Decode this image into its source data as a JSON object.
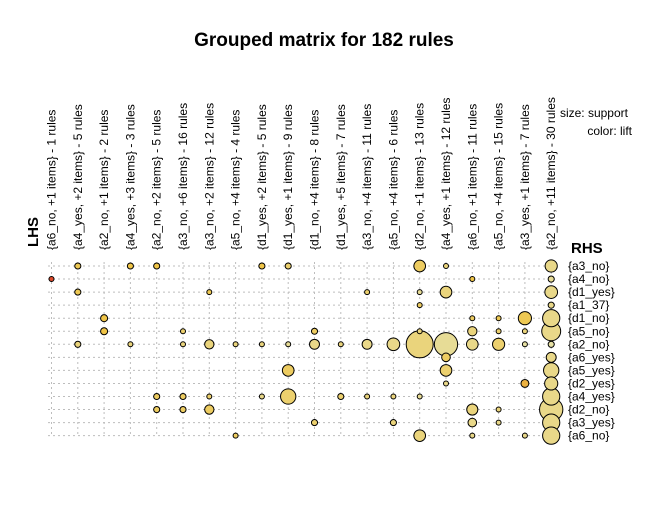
{
  "chart_data": {
    "type": "scatter",
    "title": "Grouped matrix for 182 rules",
    "xlabel": "LHS",
    "ylabel": "RHS",
    "legend": {
      "size_label": "size: support",
      "color_label": "color: lift",
      "placement": "top-right"
    },
    "lhs_groups": [
      "{a6_no, +1 items} - 1 rules",
      "{a4_yes, +2 items} - 5 rules",
      "{a2_no, +1 items} - 2 rules",
      "{a4_yes, +3 items} - 3 rules",
      "{a2_no, +2 items} - 5 rules",
      "{a3_no, +6 items} - 16 rules",
      "{a3_no, +2 items} - 12 rules",
      "{a5_no, +4 items} - 4 rules",
      "{d1_yes, +2 items} - 5 rules",
      "{d1_yes, +1 items} - 9 rules",
      "{d1_no, +4 items} - 8 rules",
      "{d1_yes, +5 items} - 7 rules",
      "{a3_no, +4 items} - 11 rules",
      "{a5_no, +4 items} - 6 rules",
      "{d2_no, +1 items} - 13 rules",
      "{a4_yes, +1 items} - 12 rules",
      "{a6_no, +1 items} - 11 rules",
      "{a5_no, +4 items} - 15 rules",
      "{a3_yes, +1 items} - 7 rules",
      "{a2_no, +11 items} - 30 rules"
    ],
    "rhs_items": [
      "{a3_no}",
      "{a4_no}",
      "{d1_yes}",
      "{a1_37}",
      "{d1_no}",
      "{a5_no}",
      "{a2_no}",
      "{a6_yes}",
      "{a5_yes}",
      "{d2_yes}",
      "{a4_yes}",
      "{d2_no}",
      "{a3_yes}",
      "{a6_no}"
    ],
    "size_measure": "support",
    "color_measure": "lift",
    "cells": [
      {
        "lhs": 0,
        "rhs": 1,
        "support": 0.03,
        "lift": 2.6
      },
      {
        "lhs": 1,
        "rhs": 0,
        "support": 0.04,
        "lift": 1.9
      },
      {
        "lhs": 1,
        "rhs": 2,
        "support": 0.04,
        "lift": 1.9
      },
      {
        "lhs": 1,
        "rhs": 6,
        "support": 0.04,
        "lift": 1.6
      },
      {
        "lhs": 2,
        "rhs": 4,
        "support": 0.05,
        "lift": 2.0
      },
      {
        "lhs": 2,
        "rhs": 5,
        "support": 0.05,
        "lift": 2.0
      },
      {
        "lhs": 3,
        "rhs": 0,
        "support": 0.04,
        "lift": 2.0
      },
      {
        "lhs": 3,
        "rhs": 6,
        "support": 0.03,
        "lift": 1.6
      },
      {
        "lhs": 4,
        "rhs": 0,
        "support": 0.04,
        "lift": 2.0
      },
      {
        "lhs": 4,
        "rhs": 10,
        "support": 0.04,
        "lift": 1.8
      },
      {
        "lhs": 4,
        "rhs": 11,
        "support": 0.04,
        "lift": 1.8
      },
      {
        "lhs": 5,
        "rhs": 5,
        "support": 0.03,
        "lift": 1.7
      },
      {
        "lhs": 5,
        "rhs": 6,
        "support": 0.03,
        "lift": 1.6
      },
      {
        "lhs": 5,
        "rhs": 10,
        "support": 0.04,
        "lift": 1.8
      },
      {
        "lhs": 5,
        "rhs": 11,
        "support": 0.04,
        "lift": 1.8
      },
      {
        "lhs": 6,
        "rhs": 2,
        "support": 0.03,
        "lift": 1.9
      },
      {
        "lhs": 6,
        "rhs": 6,
        "support": 0.08,
        "lift": 1.6
      },
      {
        "lhs": 6,
        "rhs": 10,
        "support": 0.03,
        "lift": 1.7
      },
      {
        "lhs": 6,
        "rhs": 11,
        "support": 0.08,
        "lift": 1.8
      },
      {
        "lhs": 7,
        "rhs": 6,
        "support": 0.03,
        "lift": 1.6
      },
      {
        "lhs": 7,
        "rhs": 13,
        "support": 0.03,
        "lift": 1.8
      },
      {
        "lhs": 8,
        "rhs": 0,
        "support": 0.04,
        "lift": 2.0
      },
      {
        "lhs": 8,
        "rhs": 6,
        "support": 0.03,
        "lift": 1.6
      },
      {
        "lhs": 8,
        "rhs": 10,
        "support": 0.03,
        "lift": 1.5
      },
      {
        "lhs": 9,
        "rhs": 0,
        "support": 0.04,
        "lift": 1.7
      },
      {
        "lhs": 9,
        "rhs": 6,
        "support": 0.03,
        "lift": 1.4
      },
      {
        "lhs": 9,
        "rhs": 8,
        "support": 0.12,
        "lift": 1.8
      },
      {
        "lhs": 9,
        "rhs": 10,
        "support": 0.2,
        "lift": 1.7
      },
      {
        "lhs": 10,
        "rhs": 5,
        "support": 0.04,
        "lift": 1.8
      },
      {
        "lhs": 10,
        "rhs": 6,
        "support": 0.09,
        "lift": 1.5
      },
      {
        "lhs": 10,
        "rhs": 12,
        "support": 0.04,
        "lift": 1.7
      },
      {
        "lhs": 11,
        "rhs": 6,
        "support": 0.03,
        "lift": 1.6
      },
      {
        "lhs": 11,
        "rhs": 10,
        "support": 0.04,
        "lift": 1.7
      },
      {
        "lhs": 12,
        "rhs": 2,
        "support": 0.03,
        "lift": 1.7
      },
      {
        "lhs": 12,
        "rhs": 6,
        "support": 0.09,
        "lift": 1.5
      },
      {
        "lhs": 12,
        "rhs": 10,
        "support": 0.03,
        "lift": 1.6
      },
      {
        "lhs": 13,
        "rhs": 6,
        "support": 0.14,
        "lift": 1.5
      },
      {
        "lhs": 13,
        "rhs": 10,
        "support": 0.03,
        "lift": 1.6
      },
      {
        "lhs": 13,
        "rhs": 12,
        "support": 0.04,
        "lift": 1.6
      },
      {
        "lhs": 14,
        "rhs": 0,
        "support": 0.12,
        "lift": 1.8
      },
      {
        "lhs": 14,
        "rhs": 2,
        "support": 0.03,
        "lift": 1.4
      },
      {
        "lhs": 14,
        "rhs": 3,
        "support": 0.03,
        "lift": 1.8
      },
      {
        "lhs": 14,
        "rhs": 5,
        "support": 0.03,
        "lift": 1.6
      },
      {
        "lhs": 14,
        "rhs": 6,
        "support": 0.6,
        "lift": 1.6
      },
      {
        "lhs": 14,
        "rhs": 10,
        "support": 0.03,
        "lift": 1.4
      },
      {
        "lhs": 14,
        "rhs": 13,
        "support": 0.12,
        "lift": 1.6
      },
      {
        "lhs": 15,
        "rhs": 0,
        "support": 0.03,
        "lift": 1.6
      },
      {
        "lhs": 15,
        "rhs": 2,
        "support": 0.12,
        "lift": 1.6
      },
      {
        "lhs": 15,
        "rhs": 6,
        "support": 0.45,
        "lift": 1.4
      },
      {
        "lhs": 15,
        "rhs": 7,
        "support": 0.07,
        "lift": 1.8
      },
      {
        "lhs": 15,
        "rhs": 8,
        "support": 0.12,
        "lift": 1.7
      },
      {
        "lhs": 15,
        "rhs": 9,
        "support": 0.03,
        "lift": 1.5
      },
      {
        "lhs": 16,
        "rhs": 1,
        "support": 0.03,
        "lift": 2.0
      },
      {
        "lhs": 16,
        "rhs": 4,
        "support": 0.03,
        "lift": 1.8
      },
      {
        "lhs": 16,
        "rhs": 5,
        "support": 0.08,
        "lift": 1.6
      },
      {
        "lhs": 16,
        "rhs": 6,
        "support": 0.12,
        "lift": 1.5
      },
      {
        "lhs": 16,
        "rhs": 11,
        "support": 0.11,
        "lift": 1.6
      },
      {
        "lhs": 16,
        "rhs": 12,
        "support": 0.07,
        "lift": 1.5
      },
      {
        "lhs": 16,
        "rhs": 13,
        "support": 0.03,
        "lift": 1.5
      },
      {
        "lhs": 17,
        "rhs": 4,
        "support": 0.03,
        "lift": 1.9
      },
      {
        "lhs": 17,
        "rhs": 5,
        "support": 0.03,
        "lift": 1.7
      },
      {
        "lhs": 17,
        "rhs": 6,
        "support": 0.13,
        "lift": 1.7
      },
      {
        "lhs": 17,
        "rhs": 11,
        "support": 0.03,
        "lift": 1.6
      },
      {
        "lhs": 17,
        "rhs": 12,
        "support": 0.03,
        "lift": 1.5
      },
      {
        "lhs": 18,
        "rhs": 4,
        "support": 0.15,
        "lift": 1.9
      },
      {
        "lhs": 18,
        "rhs": 5,
        "support": 0.03,
        "lift": 1.6
      },
      {
        "lhs": 18,
        "rhs": 6,
        "support": 0.03,
        "lift": 1.3
      },
      {
        "lhs": 18,
        "rhs": 9,
        "support": 0.06,
        "lift": 2.1
      },
      {
        "lhs": 18,
        "rhs": 13,
        "support": 0.03,
        "lift": 1.5
      },
      {
        "lhs": 19,
        "rhs": 0,
        "support": 0.13,
        "lift": 1.5
      },
      {
        "lhs": 19,
        "rhs": 1,
        "support": 0.04,
        "lift": 1.4
      },
      {
        "lhs": 19,
        "rhs": 2,
        "support": 0.14,
        "lift": 1.5
      },
      {
        "lhs": 19,
        "rhs": 3,
        "support": 0.04,
        "lift": 1.5
      },
      {
        "lhs": 19,
        "rhs": 4,
        "support": 0.25,
        "lift": 1.5
      },
      {
        "lhs": 19,
        "rhs": 5,
        "support": 0.3,
        "lift": 1.5
      },
      {
        "lhs": 19,
        "rhs": 6,
        "support": 0.04,
        "lift": 1.3
      },
      {
        "lhs": 19,
        "rhs": 7,
        "support": 0.09,
        "lift": 1.5
      },
      {
        "lhs": 19,
        "rhs": 8,
        "support": 0.2,
        "lift": 1.5
      },
      {
        "lhs": 19,
        "rhs": 9,
        "support": 0.15,
        "lift": 1.5
      },
      {
        "lhs": 19,
        "rhs": 10,
        "support": 0.25,
        "lift": 1.5
      },
      {
        "lhs": 19,
        "rhs": 11,
        "support": 0.45,
        "lift": 1.5
      },
      {
        "lhs": 19,
        "rhs": 12,
        "support": 0.25,
        "lift": 1.5
      },
      {
        "lhs": 19,
        "rhs": 13,
        "support": 0.25,
        "lift": 1.5
      }
    ],
    "support_range": [
      0.03,
      0.6
    ],
    "lift_range": [
      1.3,
      2.6
    ],
    "colors": {
      "low_lift": "#e6e0a3",
      "mid_lift": "#f0c445",
      "high_lift": "#dc4a2c",
      "grid": "#bdbdbd"
    },
    "grid": true
  }
}
